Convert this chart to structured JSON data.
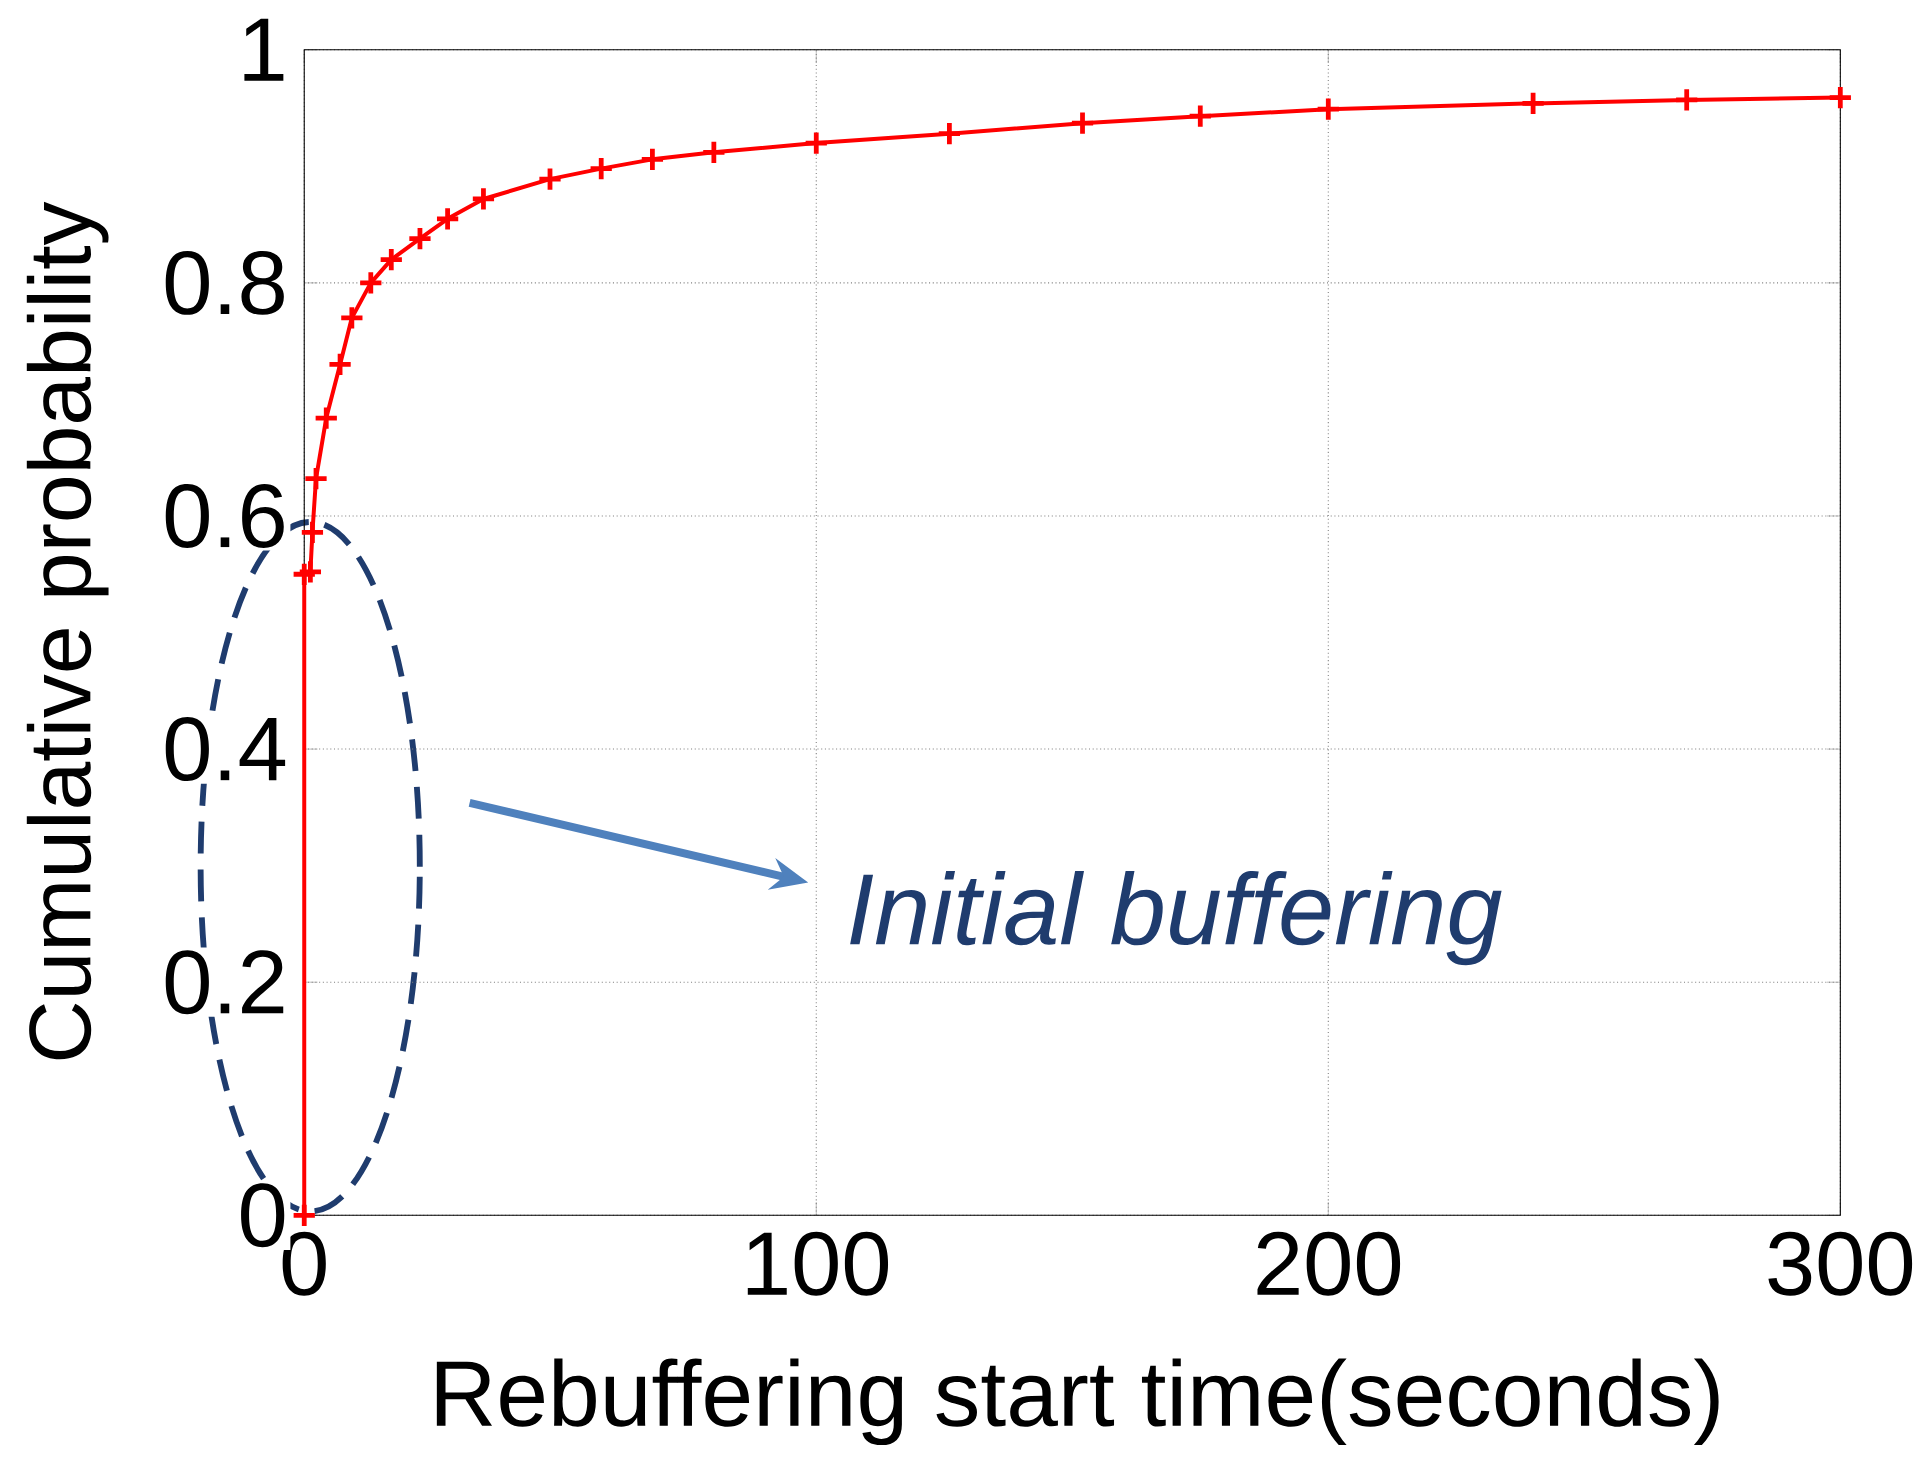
{
  "chart_data": {
    "type": "line",
    "xlabel": "Rebuffering start time(seconds)",
    "ylabel": "Cumulative probability",
    "annotations": [
      "Initial buffering"
    ],
    "series": [
      {
        "color": "#ff0000",
        "x": [
          0,
          0,
          1.2,
          1.6,
          2.3,
          4.3,
          7,
          9.3,
          13,
          17,
          22.6,
          28,
          35,
          48,
          58,
          68,
          80,
          100,
          126,
          152,
          175,
          200,
          240,
          270,
          300
        ],
        "values": [
          0,
          0.55,
          0.552,
          0.586,
          0.632,
          0.684,
          0.73,
          0.77,
          0.8,
          0.82,
          0.838,
          0.855,
          0.872,
          0.889,
          0.898,
          0.906,
          0.912,
          0.92,
          0.928,
          0.937,
          0.943,
          0.949,
          0.954,
          0.957,
          0.959
        ]
      }
    ],
    "xlim": [
      0,
      300
    ],
    "ylim": [
      0,
      1
    ],
    "xticks": [
      0,
      100,
      200,
      300
    ],
    "yticks": [
      0,
      0.2,
      0.4,
      0.6,
      0.8,
      1
    ],
    "grid": true,
    "marker": "cross",
    "line_style": "solid"
  }
}
